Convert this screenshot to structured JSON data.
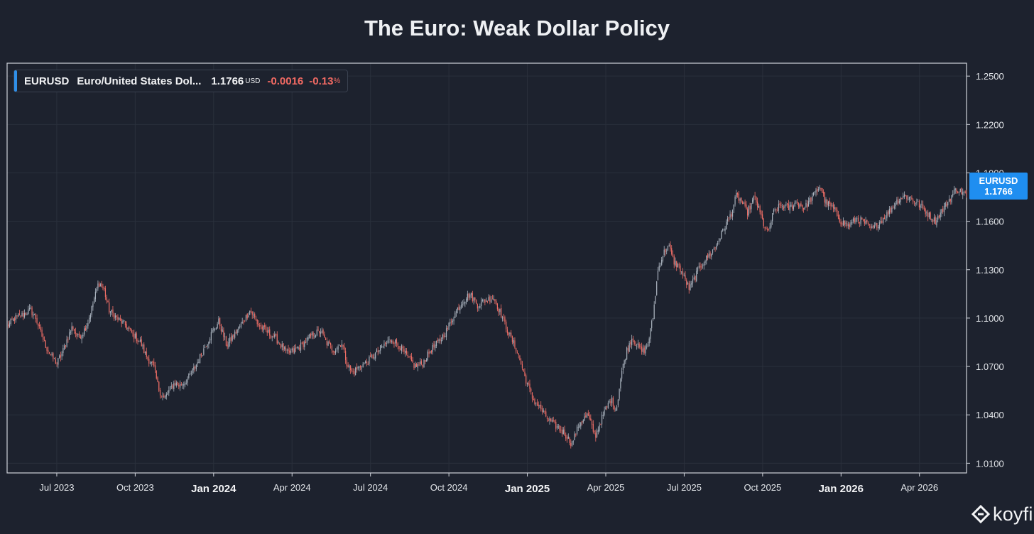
{
  "chart_data": {
    "type": "candlestick",
    "title": "The Euro: Weak Dollar Policy",
    "symbol": "EURUSD",
    "name": "Euro/United States Dol...",
    "last_price": "1.1766",
    "currency": "USD",
    "change": "-0.0016",
    "change_pct": "-0.13",
    "pct_symbol": "%",
    "ylim": [
      1.004,
      1.258
    ],
    "y_ticks": [
      "1.2500",
      "1.2200",
      "1.1900",
      "1.1600",
      "1.1300",
      "1.1000",
      "1.0700",
      "1.0400",
      "1.0100"
    ],
    "x_ticks": [
      {
        "label": "Jul 2023",
        "bold": false
      },
      {
        "label": "Oct 2023",
        "bold": false
      },
      {
        "label": "Jan 2024",
        "bold": true
      },
      {
        "label": "Apr 2024",
        "bold": false
      },
      {
        "label": "Jul 2024",
        "bold": false
      },
      {
        "label": "Oct 2024",
        "bold": false
      },
      {
        "label": "Jan 2025",
        "bold": true
      },
      {
        "label": "Apr 2025",
        "bold": false
      },
      {
        "label": "Jul 2025",
        "bold": false
      },
      {
        "label": "Oct 2025",
        "bold": false
      },
      {
        "label": "Jan 2026",
        "bold": true
      },
      {
        "label": "Apr 2026",
        "bold": false
      }
    ],
    "month_range": [
      -1.9,
      34.8
    ],
    "x_tick_months": [
      0,
      3,
      6,
      9,
      12,
      15,
      18,
      21,
      24,
      27,
      30,
      33
    ],
    "series_points": [
      [
        -1.9,
        1.095
      ],
      [
        -1.6,
        1.1
      ],
      [
        -1.3,
        1.102
      ],
      [
        -1.0,
        1.105
      ],
      [
        -0.8,
        1.1
      ],
      [
        -0.6,
        1.09
      ],
      [
        -0.4,
        1.082
      ],
      [
        -0.2,
        1.076
      ],
      [
        0.0,
        1.072
      ],
      [
        0.2,
        1.078
      ],
      [
        0.4,
        1.087
      ],
      [
        0.6,
        1.095
      ],
      [
        0.8,
        1.088
      ],
      [
        1.0,
        1.091
      ],
      [
        1.2,
        1.098
      ],
      [
        1.4,
        1.11
      ],
      [
        1.6,
        1.122
      ],
      [
        1.8,
        1.118
      ],
      [
        2.0,
        1.105
      ],
      [
        2.3,
        1.1
      ],
      [
        2.6,
        1.096
      ],
      [
        2.9,
        1.09
      ],
      [
        3.2,
        1.085
      ],
      [
        3.4,
        1.077
      ],
      [
        3.7,
        1.07
      ],
      [
        3.9,
        1.056
      ],
      [
        4.1,
        1.05
      ],
      [
        4.3,
        1.055
      ],
      [
        4.5,
        1.06
      ],
      [
        4.7,
        1.058
      ],
      [
        5.0,
        1.062
      ],
      [
        5.3,
        1.07
      ],
      [
        5.6,
        1.08
      ],
      [
        5.9,
        1.09
      ],
      [
        6.2,
        1.098
      ],
      [
        6.5,
        1.083
      ],
      [
        6.8,
        1.09
      ],
      [
        7.1,
        1.097
      ],
      [
        7.4,
        1.105
      ],
      [
        7.7,
        1.096
      ],
      [
        8.0,
        1.092
      ],
      [
        8.4,
        1.087
      ],
      [
        8.8,
        1.078
      ],
      [
        9.1,
        1.08
      ],
      [
        9.5,
        1.085
      ],
      [
        9.8,
        1.09
      ],
      [
        10.1,
        1.092
      ],
      [
        10.3,
        1.085
      ],
      [
        10.6,
        1.08
      ],
      [
        10.9,
        1.085
      ],
      [
        11.1,
        1.072
      ],
      [
        11.3,
        1.066
      ],
      [
        11.6,
        1.07
      ],
      [
        11.9,
        1.073
      ],
      [
        12.2,
        1.078
      ],
      [
        12.5,
        1.083
      ],
      [
        12.8,
        1.087
      ],
      [
        13.1,
        1.083
      ],
      [
        13.4,
        1.076
      ],
      [
        13.7,
        1.07
      ],
      [
        14.0,
        1.072
      ],
      [
        14.3,
        1.08
      ],
      [
        14.6,
        1.085
      ],
      [
        14.9,
        1.092
      ],
      [
        15.2,
        1.102
      ],
      [
        15.5,
        1.11
      ],
      [
        15.8,
        1.115
      ],
      [
        16.1,
        1.108
      ],
      [
        16.4,
        1.111
      ],
      [
        16.7,
        1.113
      ],
      [
        17.0,
        1.102
      ],
      [
        17.3,
        1.09
      ],
      [
        17.6,
        1.08
      ],
      [
        17.9,
        1.064
      ],
      [
        18.2,
        1.05
      ],
      [
        18.5,
        1.044
      ],
      [
        18.8,
        1.037
      ],
      [
        19.1,
        1.033
      ],
      [
        19.4,
        1.029
      ],
      [
        19.7,
        1.022
      ],
      [
        20.0,
        1.035
      ],
      [
        20.3,
        1.04
      ],
      [
        20.6,
        1.027
      ],
      [
        20.9,
        1.04
      ],
      [
        21.2,
        1.05
      ],
      [
        21.4,
        1.043
      ],
      [
        21.6,
        1.066
      ],
      [
        21.8,
        1.08
      ],
      [
        22.0,
        1.088
      ],
      [
        22.2,
        1.083
      ],
      [
        22.4,
        1.079
      ],
      [
        22.6,
        1.083
      ],
      [
        22.8,
        1.1
      ],
      [
        23.0,
        1.13
      ],
      [
        23.2,
        1.14
      ],
      [
        23.4,
        1.145
      ],
      [
        23.6,
        1.135
      ],
      [
        23.8,
        1.132
      ],
      [
        24.0,
        1.125
      ],
      [
        24.2,
        1.118
      ],
      [
        24.4,
        1.125
      ],
      [
        24.6,
        1.132
      ],
      [
        24.9,
        1.138
      ],
      [
        25.2,
        1.144
      ],
      [
        25.5,
        1.155
      ],
      [
        25.8,
        1.165
      ],
      [
        26.0,
        1.176
      ],
      [
        26.2,
        1.172
      ],
      [
        26.4,
        1.165
      ],
      [
        26.7,
        1.175
      ],
      [
        27.0,
        1.16
      ],
      [
        27.2,
        1.152
      ],
      [
        27.4,
        1.165
      ],
      [
        27.7,
        1.17
      ],
      [
        28.0,
        1.168
      ],
      [
        28.3,
        1.172
      ],
      [
        28.6,
        1.168
      ],
      [
        28.9,
        1.175
      ],
      [
        29.2,
        1.182
      ],
      [
        29.4,
        1.172
      ],
      [
        29.7,
        1.168
      ],
      [
        30.0,
        1.16
      ],
      [
        30.3,
        1.157
      ],
      [
        30.6,
        1.162
      ],
      [
        30.9,
        1.159
      ],
      [
        31.2,
        1.155
      ],
      [
        31.5,
        1.16
      ],
      [
        31.8,
        1.165
      ],
      [
        32.1,
        1.172
      ],
      [
        32.4,
        1.176
      ],
      [
        32.7,
        1.174
      ],
      [
        33.0,
        1.17
      ],
      [
        33.3,
        1.165
      ],
      [
        33.6,
        1.16
      ],
      [
        34.0,
        1.17
      ],
      [
        34.4,
        1.18
      ],
      [
        34.8,
        1.1766
      ]
    ],
    "up_color": "#a9b2bd",
    "down_color": "#f06e66"
  },
  "branding": {
    "logo_text": "koyfin"
  }
}
